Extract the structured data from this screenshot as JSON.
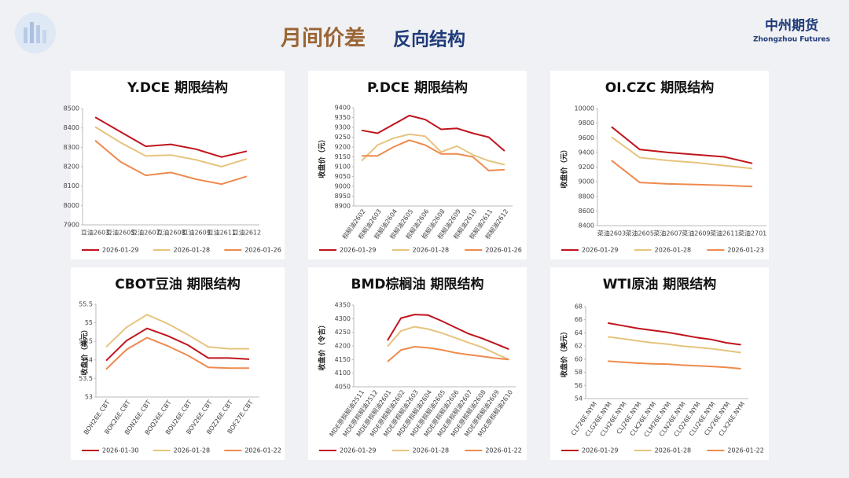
{
  "header": {
    "title_main": "月间价差",
    "title_sub": "反向结构",
    "brand": "中州期货",
    "brand_en": "Zhongzhou Futures"
  },
  "chart_data": [
    {
      "type": "line",
      "title": "Y.DCE 期限结构",
      "categories": [
        "豆油2603",
        "豆油2605",
        "豆油2607",
        "豆油2608",
        "豆油2609",
        "豆油2611",
        "豆油2612"
      ],
      "series": [
        {
          "name": "2026-01-29",
          "color": "#c0141c",
          "values": [
            8455,
            8380,
            8305,
            8315,
            8290,
            8250,
            8280
          ]
        },
        {
          "name": "2026-01-28",
          "color": "#e6c47e",
          "values": [
            8405,
            8325,
            8255,
            8260,
            8235,
            8200,
            8240
          ]
        },
        {
          "name": "2026-01-26",
          "color": "#ee8a4e",
          "values": [
            8335,
            8225,
            8155,
            8170,
            8135,
            8110,
            8150
          ]
        }
      ],
      "ylim": [
        7900,
        8500
      ],
      "yticks": [
        7900,
        8000,
        8100,
        8200,
        8300,
        8400,
        8500
      ],
      "grid": false
    },
    {
      "type": "line",
      "title": "P.DCE 期限结构",
      "y_label": "收盘价（元）",
      "categories": [
        "棕榈油2602",
        "棕榈油2603",
        "棕榈油2604",
        "棕榈油2605",
        "棕榈油2606",
        "棕榈油2608",
        "棕榈油2609",
        "棕榈油2610",
        "棕榈油2611",
        "棕榈油2612"
      ],
      "series": [
        {
          "name": "2026-01-29",
          "color": "#c0141c",
          "values": [
            9285,
            9270,
            9315,
            9360,
            9340,
            9290,
            9295,
            9270,
            9250,
            9180
          ]
        },
        {
          "name": "2026-01-28",
          "color": "#e6c47e",
          "values": [
            9130,
            9210,
            9245,
            9265,
            9255,
            9175,
            9205,
            9160,
            9130,
            9110
          ]
        },
        {
          "name": "2026-01-26",
          "color": "#ee8a4e",
          "values": [
            9155,
            9155,
            9200,
            9235,
            9210,
            9165,
            9165,
            9150,
            9080,
            9085
          ]
        }
      ],
      "ylim": [
        8900,
        9400
      ],
      "yticks": [
        8900,
        8950,
        9000,
        9050,
        9100,
        9150,
        9200,
        9250,
        9300,
        9350,
        9400
      ],
      "grid": false
    },
    {
      "type": "line",
      "title": "OI.CZC 期限结构",
      "y_label": "收盘价（元）",
      "categories": [
        "菜油2603",
        "菜油2605",
        "菜油2607",
        "菜油2609",
        "菜油2611",
        "菜油2701"
      ],
      "series": [
        {
          "name": "2026-01-29",
          "color": "#c0141c",
          "values": [
            9750,
            9440,
            9400,
            9370,
            9340,
            9250
          ]
        },
        {
          "name": "2026-01-28",
          "color": "#e6c47e",
          "values": [
            9610,
            9330,
            9290,
            9260,
            9220,
            9180
          ]
        },
        {
          "name": "2026-01-23",
          "color": "#ee8a4e",
          "values": [
            9290,
            8990,
            8970,
            8960,
            8950,
            8935
          ]
        }
      ],
      "ylim": [
        8400,
        10000
      ],
      "yticks": [
        8400,
        8600,
        8800,
        9000,
        9200,
        9400,
        9600,
        9800,
        10000
      ],
      "grid": false
    },
    {
      "type": "line",
      "title": "CBOT豆油 期限结构",
      "y_label": "收盘价（美元）",
      "categories": [
        "BOH26E.CBT",
        "BOK26E.CBT",
        "BON26E.CBT",
        "BOQ26E.CBT",
        "BOU26E.CBT",
        "BOV26E.CBT",
        "BOZ26E.CBT",
        "BOF27E.CBT"
      ],
      "series": [
        {
          "name": "2026-01-30",
          "color": "#c0141c",
          "values": [
            53.98,
            54.52,
            54.85,
            54.65,
            54.4,
            54.05,
            54.05,
            54.02
          ]
        },
        {
          "name": "2026-01-28",
          "color": "#e6c47e",
          "values": [
            54.35,
            54.88,
            55.22,
            54.98,
            54.68,
            54.35,
            54.3,
            54.3
          ]
        },
        {
          "name": "2026-01-22",
          "color": "#ee8a4e",
          "values": [
            53.75,
            54.28,
            54.6,
            54.38,
            54.12,
            53.8,
            53.78,
            53.78
          ]
        }
      ],
      "ylim": [
        53,
        55.5
      ],
      "yticks": [
        53,
        53.5,
        54,
        54.5,
        55,
        55.5
      ],
      "grid": false
    },
    {
      "type": "line",
      "title": "BMD棕榈油 期限结构",
      "y_label": "收盘价（令吉）",
      "categories": [
        "MDE原棕榈油2511",
        "MDE原棕榈油2512",
        "MDE原棕榈油2601",
        "MDE原棕榈油2602",
        "MDE原棕榈油2603",
        "MDE原棕榈油2604",
        "MDE原棕榈油2605",
        "MDE原棕榈油2606",
        "MDE原棕榈油2607",
        "MDE原棕榈油2608",
        "MDE原棕榈油2609",
        "MDE原棕榈油2610"
      ],
      "series": [
        {
          "name": "2026-01-29",
          "color": "#c0141c",
          "values": [
            null,
            null,
            4220,
            4302,
            4315,
            4313,
            4292,
            4268,
            4245,
            4228,
            4208,
            4188
          ]
        },
        {
          "name": "2026-01-28",
          "color": "#e6c47e",
          "values": [
            null,
            null,
            4198,
            4255,
            4270,
            4262,
            4248,
            4230,
            4212,
            4195,
            4172,
            4150
          ]
        },
        {
          "name": "2026-01-22",
          "color": "#ee8a4e",
          "values": [
            null,
            null,
            4142,
            4185,
            4197,
            4193,
            4186,
            4175,
            4168,
            4162,
            4155,
            4150
          ]
        }
      ],
      "ylim": [
        4050,
        4350
      ],
      "yticks": [
        4050,
        4100,
        4150,
        4200,
        4250,
        4300,
        4350
      ],
      "grid": false
    },
    {
      "type": "line",
      "title": "WTI原油 期限结构",
      "y_label": "收盘价（美元）",
      "categories": [
        "CLF26E.NYM",
        "CLG26E.NYM",
        "CLH26E.NYM",
        "CLJ26E.NYM",
        "CLK26E.NYM",
        "CLM26E.NYM",
        "CLN26E.NYM",
        "CLQ26E.NYM",
        "CLU26E.NYM",
        "CLV26E.NYM",
        "CLX26E.NYM"
      ],
      "series": [
        {
          "name": "2026-01-29",
          "color": "#c0141c",
          "values": [
            null,
            65.5,
            65.1,
            64.7,
            64.4,
            64.1,
            63.7,
            63.3,
            63.0,
            62.5,
            62.2
          ]
        },
        {
          "name": "2026-01-28",
          "color": "#e6c47e",
          "values": [
            null,
            63.4,
            63.1,
            62.8,
            62.5,
            62.3,
            62.0,
            61.8,
            61.6,
            61.3,
            61.0
          ]
        },
        {
          "name": "2026-01-22",
          "color": "#ee8a4e",
          "values": [
            null,
            59.7,
            59.55,
            59.4,
            59.3,
            59.25,
            59.1,
            59.0,
            58.9,
            58.75,
            58.55
          ]
        }
      ],
      "ylim": [
        54,
        68
      ],
      "yticks": [
        54,
        56,
        58,
        60,
        62,
        64,
        66,
        68
      ],
      "grid": false
    }
  ]
}
